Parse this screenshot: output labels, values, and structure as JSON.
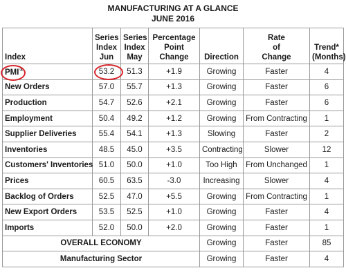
{
  "title": {
    "line1": "MANUFACTURING AT A GLANCE",
    "line2": "JUNE 2016"
  },
  "headers": {
    "index": "Index",
    "series_jun": [
      "Series",
      "Index",
      "Jun"
    ],
    "series_may": [
      "Series",
      "Index",
      "May"
    ],
    "pct_change": [
      "Percentage",
      "Point",
      "Change"
    ],
    "direction": "Direction",
    "rate": [
      "Rate",
      "of",
      "Change"
    ],
    "trend": [
      "Trend*",
      "(Months)"
    ]
  },
  "rows": [
    {
      "index": "PMI",
      "jun": "53.2",
      "may": "51.3",
      "change": "+1.9",
      "direction": "Growing",
      "rate": "Faster",
      "trend": "4"
    },
    {
      "index": "New Orders",
      "jun": "57.0",
      "may": "55.7",
      "change": "+1.3",
      "direction": "Growing",
      "rate": "Faster",
      "trend": "6"
    },
    {
      "index": "Production",
      "jun": "54.7",
      "may": "52.6",
      "change": "+2.1",
      "direction": "Growing",
      "rate": "Faster",
      "trend": "6"
    },
    {
      "index": "Employment",
      "jun": "50.4",
      "may": "49.2",
      "change": "+1.2",
      "direction": "Growing",
      "rate": "From Contracting",
      "trend": "1"
    },
    {
      "index": "Supplier Deliveries",
      "jun": "55.4",
      "may": "54.1",
      "change": "+1.3",
      "direction": "Slowing",
      "rate": "Faster",
      "trend": "2"
    },
    {
      "index": "Inventories",
      "jun": "48.5",
      "may": "45.0",
      "change": "+3.5",
      "direction": "Contracting",
      "rate": "Slower",
      "trend": "12"
    },
    {
      "index": "Customers' Inventories",
      "jun": "51.0",
      "may": "50.0",
      "change": "+1.0",
      "direction": "Too High",
      "rate": "From Unchanged",
      "trend": "1"
    },
    {
      "index": "Prices",
      "jun": "60.5",
      "may": "63.5",
      "change": "-3.0",
      "direction": "Increasing",
      "rate": "Slower",
      "trend": "4"
    },
    {
      "index": "Backlog of Orders",
      "jun": "52.5",
      "may": "47.0",
      "change": "+5.5",
      "direction": "Growing",
      "rate": "From Contracting",
      "trend": "1"
    },
    {
      "index": "New Export Orders",
      "jun": "53.5",
      "may": "52.5",
      "change": "+1.0",
      "direction": "Growing",
      "rate": "Faster",
      "trend": "4"
    },
    {
      "index": "Imports",
      "jun": "52.0",
      "may": "50.0",
      "change": "+2.0",
      "direction": "Growing",
      "rate": "Faster",
      "trend": "1"
    }
  ],
  "summary": [
    {
      "label": "OVERALL ECONOMY",
      "direction": "Growing",
      "rate": "Faster",
      "trend": "85"
    },
    {
      "label": "Manufacturing Sector",
      "direction": "Growing",
      "rate": "Faster",
      "trend": "4"
    }
  ],
  "colors": {
    "highlight": "#d6232a",
    "border": "#9a9a9a"
  }
}
